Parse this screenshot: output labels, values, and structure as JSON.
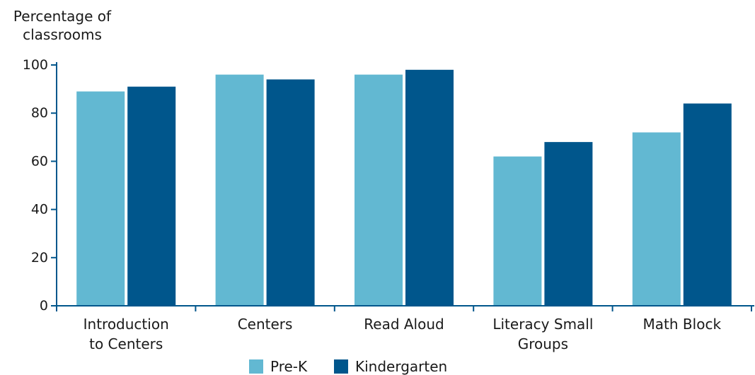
{
  "chart_data": {
    "type": "bar",
    "ylabel": "Percentage of classrooms",
    "ylabel_lines": [
      "Percentage of",
      "classrooms"
    ],
    "ylim": [
      0,
      100
    ],
    "yticks": [
      0,
      20,
      40,
      60,
      80,
      100
    ],
    "categories": [
      [
        "Introduction",
        "to Centers"
      ],
      [
        "Centers"
      ],
      [
        "Read Aloud"
      ],
      [
        "Literacy Small",
        "Groups"
      ],
      [
        "Math Block"
      ]
    ],
    "series": [
      {
        "name": "Pre-K",
        "color": "#62b8d2",
        "values": [
          89,
          96,
          96,
          62,
          72
        ]
      },
      {
        "name": "Kindergarten",
        "color": "#00568c",
        "values": [
          91,
          94,
          98,
          68,
          84
        ]
      }
    ],
    "grid": false,
    "legend_position": "bottom"
  },
  "colors": {
    "axis": "#00568c"
  }
}
